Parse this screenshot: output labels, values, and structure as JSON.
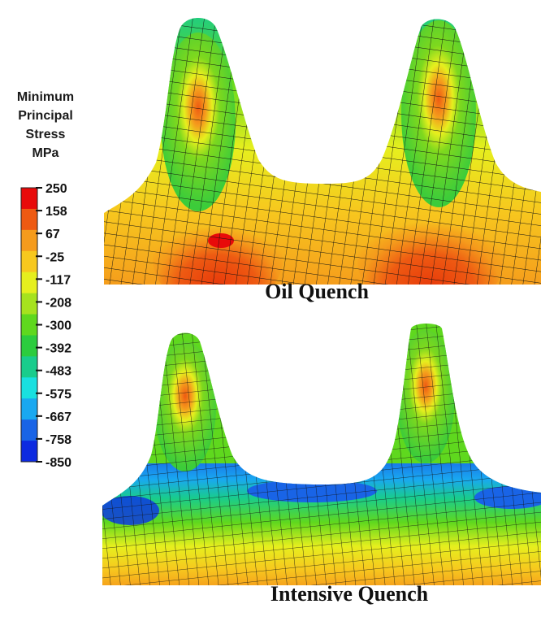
{
  "legend": {
    "title_lines": [
      "Minimum",
      "Principal",
      "Stress",
      "MPa"
    ],
    "ticks": [
      "250",
      "158",
      "67",
      "-25",
      "-117",
      "-208",
      "-300",
      "-392",
      "-483",
      "-575",
      "-667",
      "-758",
      "-850"
    ],
    "colors": [
      "#e80a0a",
      "#ee5a12",
      "#f59b1c",
      "#f7c81e",
      "#e6ef1e",
      "#a6e21e",
      "#5fd81e",
      "#2ccc3e",
      "#19cc8c",
      "#19e0e0",
      "#19a8f0",
      "#1964e6",
      "#0d2ae0"
    ]
  },
  "panels": [
    {
      "id": "oil",
      "caption": "Oil Quench"
    },
    {
      "id": "intensive",
      "caption": "Intensive Quench"
    }
  ]
}
